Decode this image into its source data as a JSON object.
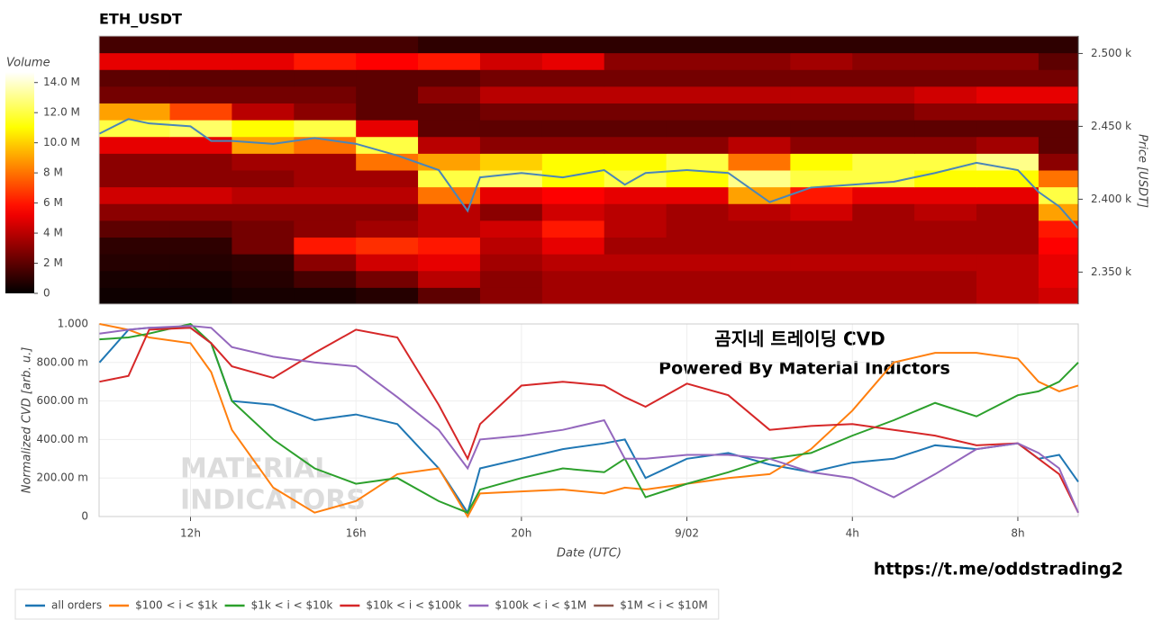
{
  "chart_data": [
    {
      "type": "heatmap",
      "title": "ETH_USDT",
      "y_label": "Price [USDT]",
      "colorbar_label": "Volume",
      "colormap": "hot",
      "x_bins": [
        9.8,
        11.5,
        13,
        14.5,
        16,
        17.5,
        19,
        20.5,
        22,
        23.5,
        25,
        26.5,
        28,
        29.5,
        31,
        32.5,
        33.46
      ],
      "y_bins": [
        2328,
        2339.5,
        2351,
        2362.5,
        2374,
        2385.5,
        2397,
        2408.5,
        2420,
        2431.5,
        2443,
        2454.5,
        2466,
        2477.5,
        2489,
        2500.5,
        2512
      ],
      "z": [
        [
          0.3,
          0.3,
          0.5,
          0.5,
          0.8,
          2,
          3,
          3.5,
          3.5,
          3.5,
          3.5,
          3.5,
          3.5,
          3.5,
          4,
          4.5
        ],
        [
          0.5,
          0.5,
          0.8,
          1.5,
          2.5,
          4,
          3,
          3.5,
          3.5,
          3.5,
          3.5,
          3.5,
          3.5,
          3.5,
          4,
          5
        ],
        [
          0.8,
          0.8,
          1,
          3,
          4.5,
          5,
          3.5,
          4,
          4,
          4,
          4,
          4,
          4,
          4,
          4,
          5
        ],
        [
          1,
          1,
          2.5,
          6,
          6.5,
          6,
          4,
          5,
          3.5,
          3.5,
          3.5,
          3.5,
          3.5,
          3.5,
          3.5,
          5.5
        ],
        [
          2,
          2,
          2.5,
          3,
          3.5,
          4,
          4.5,
          6,
          4,
          3.5,
          3.5,
          3.5,
          3.5,
          3.5,
          3.5,
          6
        ],
        [
          3,
          3,
          3,
          3,
          3,
          4,
          3,
          4.5,
          4,
          3.5,
          4,
          4.5,
          3.5,
          4,
          3.5,
          9
        ],
        [
          4.5,
          4.5,
          4,
          4,
          4,
          8,
          5,
          5.5,
          5,
          5,
          9,
          6,
          5,
          5,
          5,
          12
        ],
        [
          3,
          3,
          3,
          3.5,
          3.5,
          12,
          12.5,
          11,
          12,
          11,
          13,
          12,
          12,
          11,
          11,
          8
        ],
        [
          3,
          3,
          3.5,
          3.5,
          8,
          9,
          10,
          11,
          11,
          12,
          8,
          11,
          12,
          12,
          13,
          3
        ],
        [
          5,
          5,
          9,
          8,
          12,
          4,
          3,
          3,
          3,
          3,
          4,
          3,
          3,
          3,
          3.5,
          2
        ],
        [
          12,
          12.5,
          11,
          12,
          5,
          2,
          2,
          2,
          2,
          2,
          2,
          2,
          2,
          2,
          2,
          2
        ],
        [
          9,
          7,
          4,
          3,
          2,
          2,
          2.5,
          2.5,
          2.5,
          2.5,
          2.5,
          2.5,
          2.5,
          3,
          3,
          3
        ],
        [
          2.5,
          2.5,
          2.5,
          2.5,
          2,
          3,
          4,
          4,
          4,
          4,
          4,
          4,
          4,
          4.5,
          5,
          5
        ],
        [
          2,
          2,
          2,
          2,
          2,
          2,
          2.5,
          2.5,
          2.5,
          2.5,
          2.5,
          2.5,
          2.5,
          2.5,
          2.5,
          2.5
        ],
        [
          5,
          5,
          5,
          6,
          5.5,
          6,
          4.5,
          5,
          3,
          3,
          3,
          3.5,
          3,
          3,
          3,
          2
        ],
        [
          1.5,
          1.5,
          1.5,
          1.5,
          1.5,
          1,
          1,
          1,
          1,
          1,
          1,
          1,
          1,
          1,
          1,
          1
        ]
      ],
      "xlim": [
        9.79,
        33.46
      ],
      "ylim": [
        2328,
        2512
      ],
      "yticks": [
        {
          "value": 2350,
          "label": "2.350 k"
        },
        {
          "value": 2400,
          "label": "2.400 k"
        },
        {
          "value": 2450,
          "label": "2.450 k"
        },
        {
          "value": 2500,
          "label": "2.500 k"
        }
      ],
      "zlim": [
        0,
        14.7
      ],
      "zticks": [
        0,
        {
          "value": 2,
          "label": "2 M"
        },
        {
          "value": 4,
          "label": "4 M"
        },
        {
          "value": 6,
          "label": "6 M"
        },
        {
          "value": 8,
          "label": "8 M"
        },
        {
          "value": 10,
          "label": "10.0 M"
        },
        {
          "value": 12,
          "label": "12.0 M"
        },
        {
          "value": 14,
          "label": "14.0 M"
        }
      ],
      "line": {
        "color": "#4a86b8",
        "x": [
          9.8,
          10.5,
          11,
          12,
          12.5,
          13,
          14,
          15,
          16,
          17,
          18,
          18.7,
          19,
          20,
          21,
          22,
          22.5,
          23,
          24,
          25,
          26,
          27,
          28,
          29,
          30,
          31,
          32,
          32.5,
          33,
          33.46
        ],
        "values": [
          2445,
          2455,
          2452,
          2450,
          2440,
          2440,
          2438,
          2442,
          2438,
          2430,
          2420,
          2392,
          2415,
          2418,
          2415,
          2420,
          2410,
          2418,
          2420,
          2418,
          2398,
          2408,
          2410,
          2412,
          2418,
          2425,
          2420,
          2405,
          2395,
          2380
        ]
      }
    },
    {
      "type": "line",
      "x_label": "Date (UTC)",
      "y_label": "Normalized CVD [arb. u.]",
      "grid": true,
      "legend": "bottom-left",
      "x": [
        9.8,
        10.5,
        11,
        12,
        12.5,
        13,
        14,
        15,
        16,
        17,
        18,
        18.7,
        19,
        20,
        21,
        22,
        22.5,
        23,
        24,
        25,
        26,
        27,
        28,
        29,
        30,
        31,
        32,
        32.5,
        33,
        33.46
      ],
      "xlim": [
        9.79,
        33.46
      ],
      "xticks": [
        {
          "value": 12,
          "label": "12h"
        },
        {
          "value": 16,
          "label": "16h"
        },
        {
          "value": 20,
          "label": "20h"
        },
        {
          "value": 24,
          "label": "9/02"
        },
        {
          "value": 28,
          "label": "4h"
        },
        {
          "value": 32,
          "label": "8h"
        }
      ],
      "ylim": [
        0,
        1
      ],
      "yticks": [
        0,
        {
          "value": 0.2,
          "label": "200.00 m"
        },
        {
          "value": 0.4,
          "label": "400.00 m"
        },
        {
          "value": 0.6,
          "label": "600.00 m"
        },
        {
          "value": 0.8,
          "label": "800.00 m"
        },
        {
          "value": 1,
          "label": "1.000"
        }
      ],
      "series": [
        {
          "name": "all orders",
          "color": "#1f77b4",
          "values": [
            0.8,
            0.97,
            0.98,
            0.98,
            0.9,
            0.6,
            0.58,
            0.5,
            0.53,
            0.48,
            0.25,
            0.02,
            0.25,
            0.3,
            0.35,
            0.38,
            0.4,
            0.2,
            0.3,
            0.33,
            0.27,
            0.23,
            0.28,
            0.3,
            0.37,
            0.35,
            0.38,
            0.3,
            0.32,
            0.18
          ]
        },
        {
          "name": "$100 < i < $1k",
          "color": "#ff7f0e",
          "values": [
            1.0,
            0.97,
            0.93,
            0.9,
            0.75,
            0.45,
            0.15,
            0.02,
            0.08,
            0.22,
            0.25,
            0.0,
            0.12,
            0.13,
            0.14,
            0.12,
            0.15,
            0.14,
            0.17,
            0.2,
            0.22,
            0.35,
            0.55,
            0.8,
            0.85,
            0.85,
            0.82,
            0.7,
            0.65,
            0.68
          ]
        },
        {
          "name": "$1k < i < $10k",
          "color": "#2ca02c",
          "values": [
            0.92,
            0.93,
            0.95,
            1.0,
            0.9,
            0.6,
            0.4,
            0.25,
            0.17,
            0.2,
            0.08,
            0.02,
            0.14,
            0.2,
            0.25,
            0.23,
            0.3,
            0.1,
            0.17,
            0.23,
            0.3,
            0.33,
            0.42,
            0.5,
            0.59,
            0.52,
            0.63,
            0.65,
            0.7,
            0.8
          ]
        },
        {
          "name": "$10k < i < $100k",
          "color": "#d62728",
          "values": [
            0.7,
            0.73,
            0.97,
            0.98,
            0.9,
            0.78,
            0.72,
            0.85,
            0.97,
            0.93,
            0.58,
            0.3,
            0.48,
            0.68,
            0.7,
            0.68,
            0.62,
            0.57,
            0.69,
            0.63,
            0.45,
            0.47,
            0.48,
            0.45,
            0.42,
            0.37,
            0.38,
            0.3,
            0.22,
            0.02
          ]
        },
        {
          "name": "$100k < i < $1M",
          "color": "#9467bd",
          "values": [
            0.95,
            0.97,
            0.98,
            0.99,
            0.98,
            0.88,
            0.83,
            0.8,
            0.78,
            0.62,
            0.45,
            0.25,
            0.4,
            0.42,
            0.45,
            0.5,
            0.3,
            0.3,
            0.32,
            0.32,
            0.3,
            0.23,
            0.2,
            0.1,
            0.22,
            0.35,
            0.38,
            0.33,
            0.25,
            0.02
          ]
        },
        {
          "name": "$1M < i < $10M",
          "color": "#8c564b",
          "values": [
            null,
            null,
            null,
            null,
            null,
            null,
            null,
            null,
            null,
            null,
            null,
            null,
            null,
            null,
            null,
            null,
            null,
            null,
            null,
            null,
            null,
            null,
            null,
            null,
            null,
            null,
            null,
            null,
            null,
            null
          ]
        }
      ],
      "annotations": [
        "곰지네 트레이딩 CVD",
        "Powered By Material Indictors"
      ],
      "watermark": [
        "MATERIAL",
        "INDICATORS"
      ]
    }
  ],
  "footer_link": "https://t.me/oddstrading2"
}
